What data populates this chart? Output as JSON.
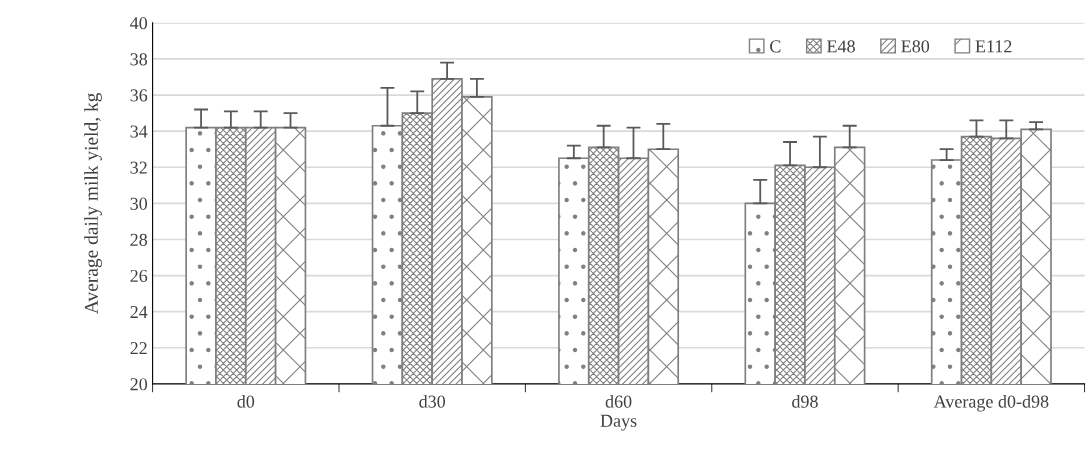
{
  "chart_data": {
    "type": "bar",
    "xlabel": "Days",
    "ylabel": "Average daily milk yield, kg",
    "categories": [
      "d0",
      "d30",
      "d60",
      "d98",
      "Average d0-d98"
    ],
    "series": [
      {
        "name": "C",
        "color": "#7f7f7f",
        "values": [
          34.2,
          34.3,
          32.5,
          30.0,
          32.4
        ],
        "errors": [
          [
            34.2,
            35.2
          ],
          [
            34.3,
            36.4
          ],
          [
            32.5,
            33.2
          ],
          [
            30.0,
            31.3
          ],
          [
            32.4,
            33.0
          ]
        ]
      },
      {
        "name": "E48",
        "color": "#7f7f7f",
        "values": [
          34.2,
          35.0,
          33.1,
          32.1,
          33.7
        ],
        "errors": [
          [
            34.2,
            35.1
          ],
          [
            35.0,
            36.2
          ],
          [
            33.1,
            34.3
          ],
          [
            32.1,
            33.4
          ],
          [
            33.7,
            34.6
          ]
        ]
      },
      {
        "name": "E80",
        "color": "#7f7f7f",
        "values": [
          34.2,
          36.9,
          32.5,
          32.0,
          33.6
        ],
        "errors": [
          [
            34.2,
            35.1
          ],
          [
            36.9,
            37.8
          ],
          [
            32.5,
            34.2
          ],
          [
            32.0,
            33.7
          ],
          [
            33.6,
            34.6
          ]
        ]
      },
      {
        "name": "E112",
        "color": "#7f7f7f",
        "values": [
          34.2,
          35.9,
          33.0,
          33.1,
          34.1
        ],
        "errors": [
          [
            34.2,
            35.0
          ],
          [
            35.9,
            36.9
          ],
          [
            33.0,
            34.4
          ],
          [
            33.1,
            34.3
          ],
          [
            34.1,
            34.5
          ]
        ]
      }
    ],
    "ylim": [
      20,
      40
    ],
    "yticks": [
      20,
      22,
      24,
      26,
      28,
      30,
      32,
      34,
      36,
      38,
      40
    ],
    "grid": "y",
    "legend": "top right"
  }
}
